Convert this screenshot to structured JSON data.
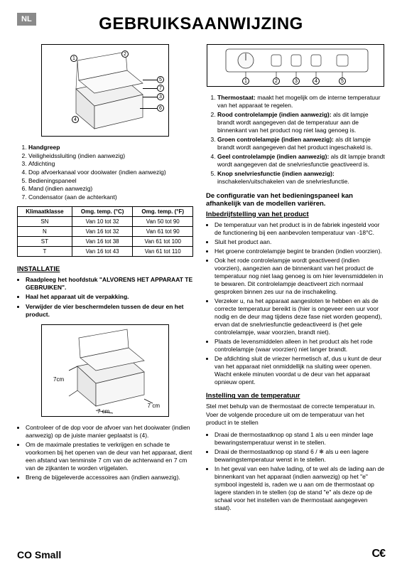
{
  "lang_badge": "NL",
  "title": "GEBRUIKSAANWIJZING",
  "fig1_parts": [
    "Handgreep",
    "Veiligheidssluiting (indien aanwezig)",
    "Afdichting",
    "Dop afvoerkanaal voor dooiwater (indien aanwezig)",
    "Bedieningspaneel",
    "Mand (indien aanwezig)",
    "Condensator (aan de achterkant)"
  ],
  "climate": {
    "headers": [
      "Klimaatklasse",
      "Omg. temp. (°C)",
      "Omg. temp. (°F)"
    ],
    "rows": [
      [
        "SN",
        "Van 10 tot 32",
        "Van 50 tot 90"
      ],
      [
        "N",
        "Van 16 tot 32",
        "Van 61 tot 90"
      ],
      [
        "ST",
        "Van 16 tot 38",
        "Van 61 tot 100"
      ],
      [
        "T",
        "Van 16 tot 43",
        "Van 61 tot 110"
      ]
    ]
  },
  "install": {
    "heading": "INSTALLATIE",
    "items": [
      "Raadpleeg het hoofdstuk \"ALVORENS HET APPARAAT TE GEBRUIKEN\".",
      "Haal het apparaat uit de verpakking.",
      "Verwijder de vier beschermdelen tussen de deur en het product."
    ],
    "after_fig": [
      "Controleer of de dop voor de afvoer van het dooiwater (indien aanwezig) op de juiste manier geplaatst is (4).",
      "Om de maximale prestaties te verkrijgen en schade te voorkomen bij het openen van de deur van het apparaat, dient een afstand van tenminste 7 cm van de achterwand en 7 cm van de zijkanten te worden vrijgelaten.",
      "Breng de bijgeleverde accessoires aan (indien aanwezig)."
    ]
  },
  "fig2_dims": {
    "back": "7cm",
    "side1": "7 cm",
    "side2": "7 cm"
  },
  "panel": {
    "items": [
      {
        "lead": "Thermostaat:",
        "rest": " maakt het mogelijk om de interne temperatuur van het apparaat te regelen."
      },
      {
        "lead": "Rood controlelampje (indien aanwezig):",
        "rest": " als dit lampje brandt wordt aangegeven dat de temperatuur aan de binnenkant van het product nog niet laag genoeg is."
      },
      {
        "lead": "Groen controlelampje (indien aanwezig):",
        "rest": " als dit lampje brandt wordt aangegeven dat het product ingeschakeld is."
      },
      {
        "lead": "Geel controlelampje (indien aanwezig):",
        "rest": " als dit lampje brandt wordt aangegeven dat de snelvriesfunctie geactiveerd is."
      },
      {
        "lead": "Knop snelvriesfunctie (indien aanwezig):",
        "rest": " inschakelen/uitschakelen van de snelvriesfunctie."
      }
    ],
    "note": "De configuratie van het bedieningspaneel kan afhankelijk van de modellen variëren."
  },
  "commissioning": {
    "heading": "Inbedrijfstelling van het product",
    "items": [
      "De temperatuur van het product is in de fabriek ingesteld voor de functionering bij een aanbevolen temperatuur van -18°C.",
      "Sluit het product aan.",
      "Het groene controlelampje begint te branden (indien voorzien).",
      "Ook het rode controlelampje wordt geactiveerd (indien voorzien), aangezien aan de binnenkant van het product de temperatuur nog niet laag genoeg is om hier levensmiddelen in te bewaren. Dit controlelampje deactiveert zich normaal gesproken binnen zes uur na de inschakeling.",
      "Verzeker u, na het apparaat aangesloten te hebben en als de correcte temperatuur bereikt is (hier is ongeveer een uur voor nodig en de deur mag tijdens deze fase niet worden geopend), ervan dat de snelvriesfunctie gedeactiveerd is (het gele controlelampje, waar voorzien, brandt niet).",
      "Plaats de levensmiddelen alleen in het product als het rode controlelampje (waar voorzien) niet langer brandt.",
      "De afdichting sluit de vriezer hermetisch af, dus u kunt de deur van het apparaat niet onmiddellijk na sluiting weer openen. Wacht enkele minuten voordat u de deur van het apparaat opnieuw opent."
    ]
  },
  "tempset": {
    "heading": "Instelling van de temperatuur",
    "intro": "Stel met behulp van de thermostaat de correcte temperatuur in. Voer de volgende procedure uit om de temperatuur van het product in te stellen",
    "items": [
      "Draai de thermostaatknop op stand 1 als u een minder lage bewaringstemperatuur wenst in te stellen.",
      "Draai de thermostaatknop op stand 6 / ❄ als u een lagere bewaringstemperatuur wenst in te stellen.",
      "In het geval van een halve lading, of te wel als de lading aan de binnenkant van het apparaat (indien aanwezig) op het \"e\" symbool ingesteld is, raden we u aan om de thermostaat op lagere standen in te stellen (op de stand \"e\" als deze op de schaal voor het instellen van de thermostaat aangegeven staat)."
    ]
  },
  "footer": {
    "model": "CO Small",
    "ce": "C€"
  }
}
